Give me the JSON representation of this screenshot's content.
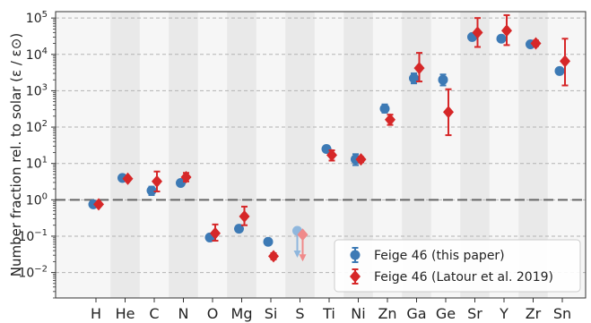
{
  "chart_data": {
    "type": "scatter",
    "title": "",
    "xlabel": "",
    "ylabel": "Number fraction rel. to solar (ε / ε⊙)",
    "y_scale": "log",
    "ylim": [
      0.002,
      150000
    ],
    "y_ticks": [
      {
        "value": 0.01,
        "base": "10",
        "exp": "−2"
      },
      {
        "value": 0.1,
        "base": "10",
        "exp": "−1"
      },
      {
        "value": 1,
        "base": "10",
        "exp": "0"
      },
      {
        "value": 10,
        "base": "10",
        "exp": "1"
      },
      {
        "value": 100,
        "base": "10",
        "exp": "2"
      },
      {
        "value": 1000,
        "base": "10",
        "exp": "3"
      },
      {
        "value": 10000,
        "base": "10",
        "exp": "4"
      },
      {
        "value": 100000,
        "base": "10",
        "exp": "5"
      }
    ],
    "categories": [
      "H",
      "He",
      "C",
      "N",
      "O",
      "Mg",
      "Si",
      "S",
      "Ti",
      "Ni",
      "Zn",
      "Ga",
      "Ge",
      "Sr",
      "Y",
      "Zr",
      "Sn"
    ],
    "reference_line": {
      "y": 1,
      "style": "dashed"
    },
    "grid": "horizontal dashed, alternating vertical category bands",
    "legend": {
      "position": "bottom-right"
    },
    "series": [
      {
        "name": "Feige 46 (this paper)",
        "color": "#3d7ab5",
        "marker": "circle",
        "points": [
          {
            "x": "H",
            "y": 0.75,
            "lo": 0.68,
            "hi": 0.82
          },
          {
            "x": "He",
            "y": 4.0,
            "lo": 3.7,
            "hi": 4.4
          },
          {
            "x": "C",
            "y": 1.8,
            "lo": 1.35,
            "hi": 2.3
          },
          {
            "x": "N",
            "y": 2.9,
            "lo": 2.6,
            "hi": 3.2
          },
          {
            "x": "O",
            "y": 0.092,
            "lo": 0.083,
            "hi": 0.1
          },
          {
            "x": "Mg",
            "y": 0.16,
            "lo": 0.145,
            "hi": 0.175
          },
          {
            "x": "Si",
            "y": 0.07,
            "lo": 0.063,
            "hi": 0.077
          },
          {
            "x": "S",
            "y": 0.14,
            "upper_limit": true
          },
          {
            "x": "Ti",
            "y": 25,
            "lo": 21,
            "hi": 30
          },
          {
            "x": "Ni",
            "y": 13,
            "lo": 9,
            "hi": 18
          },
          {
            "x": "Zn",
            "y": 320,
            "lo": 250,
            "hi": 420
          },
          {
            "x": "Ga",
            "y": 2200,
            "lo": 1600,
            "hi": 3000
          },
          {
            "x": "Ge",
            "y": 2000,
            "lo": 1400,
            "hi": 2800
          },
          {
            "x": "Sr",
            "y": 30000,
            "lo": 25000,
            "hi": 36000
          },
          {
            "x": "Y",
            "y": 27000,
            "lo": 23000,
            "hi": 31000
          },
          {
            "x": "Zr",
            "y": 19000,
            "lo": 16000,
            "hi": 22000
          },
          {
            "x": "Sn",
            "y": 3500,
            "lo": 2900,
            "hi": 4200
          }
        ]
      },
      {
        "name": "Feige 46 (Latour et al. 2019)",
        "color": "#d62728",
        "marker": "diamond",
        "points": [
          {
            "x": "H",
            "y": 0.75,
            "lo": 0.69,
            "hi": 0.82
          },
          {
            "x": "He",
            "y": 3.8,
            "lo": 3.5,
            "hi": 4.2
          },
          {
            "x": "C",
            "y": 3.2,
            "lo": 1.7,
            "hi": 6.0
          },
          {
            "x": "N",
            "y": 4.2,
            "lo": 3.2,
            "hi": 5.5
          },
          {
            "x": "O",
            "y": 0.12,
            "lo": 0.075,
            "hi": 0.21
          },
          {
            "x": "Mg",
            "y": 0.35,
            "lo": 0.2,
            "hi": 0.65
          },
          {
            "x": "Si",
            "y": 0.028,
            "lo": 0.023,
            "hi": 0.034
          },
          {
            "x": "S",
            "y": 0.11,
            "upper_limit": true
          },
          {
            "x": "Ti",
            "y": 17,
            "lo": 12,
            "hi": 23
          },
          {
            "x": "Ni",
            "y": 13,
            "lo": 11,
            "hi": 15
          },
          {
            "x": "Zn",
            "y": 160,
            "lo": 115,
            "hi": 220
          },
          {
            "x": "Ga",
            "y": 4200,
            "lo": 1800,
            "hi": 11000
          },
          {
            "x": "Ge",
            "y": 260,
            "lo": 60,
            "hi": 1100
          },
          {
            "x": "Sr",
            "y": 40000,
            "lo": 16000,
            "hi": 100000
          },
          {
            "x": "Y",
            "y": 45000,
            "lo": 18000,
            "hi": 120000
          },
          {
            "x": "Zr",
            "y": 20000,
            "lo": 17000,
            "hi": 24000
          },
          {
            "x": "Sn",
            "y": 6500,
            "lo": 1400,
            "hi": 27000
          }
        ]
      }
    ]
  }
}
